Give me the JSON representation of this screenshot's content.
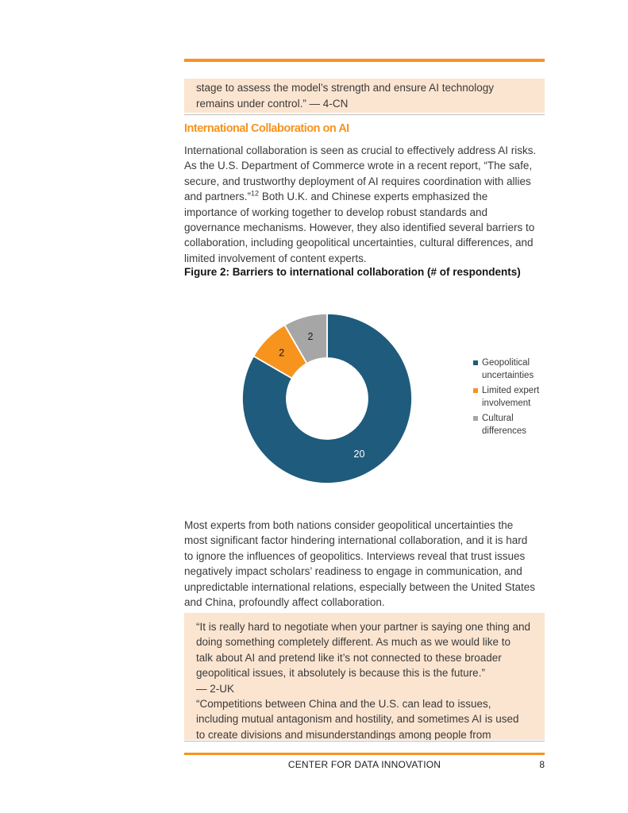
{
  "accent_color": "#F7941E",
  "quote_box_color": "#FBE5D1",
  "quote_top": {
    "lines": [
      "stage to assess the model’s strength and ensure AI technology",
      "remains under control.” — 4-CN"
    ]
  },
  "section": {
    "heading": "International Collaboration on AI"
  },
  "para1": {
    "pre": "International collaboration is seen as crucial to effectively address AI risks. As the U.S. Department of Commerce wrote in a recent report, “The safe, secure, and trustworthy deployment of AI requires coordination with allies and partners.”",
    "footnote_ref": "12",
    "post": " Both U.K. and Chinese experts emphasized the importance of working together to develop robust standards and governance mechanisms. However, they also identified several barriers to collaboration, including geopolitical uncertainties, cultural differences, and limited involvement of content experts."
  },
  "figure": {
    "caption": "Figure 2: Barriers to international collaboration (# of respondents)"
  },
  "chart_data": {
    "type": "pie",
    "subtype": "donut",
    "title": "Figure 2: Barriers to international collaboration (# of respondents)",
    "categories": [
      "Geopolitical uncertainties",
      "Limited expert involvement",
      "Cultural differences"
    ],
    "values": [
      20,
      2,
      2
    ],
    "total": 24,
    "colors": [
      "#1F5B7C",
      "#F7941E",
      "#A6A6A6"
    ],
    "data_label_colors": [
      "#FFFFFF",
      "#1A1A1A",
      "#1A1A1A"
    ],
    "start_angle_deg": 0,
    "direction": "clockwise",
    "inner_radius_ratio": 0.48,
    "legend_position": "right"
  },
  "para2": {
    "text": "Most experts from both nations consider geopolitical uncertainties the most significant factor hindering international collaboration, and it is hard to ignore the influences of geopolitics. Interviews reveal that trust issues negatively impact scholars’ readiness to engage in communication, and unpredictable international relations, especially between the United States and China, profoundly affect collaboration."
  },
  "quote_bottom": {
    "p1_lines": [
      "“It is really hard to negotiate when your partner is saying one thing and",
      "doing something completely different. As much as we would like to",
      "talk about AI and pretend like it’s not connected to these broader",
      "geopolitical issues, it absolutely is because this is the future.”",
      "— 2-UK"
    ],
    "p2_lines": [
      "“Competitions between China and the U.S. can lead to issues,",
      "including mutual antagonism and hostility, and sometimes AI is used",
      "to create divisions and misunderstandings among people from"
    ]
  },
  "footer": {
    "org": "CENTER FOR DATA INNOVATION",
    "page_number": "8"
  }
}
